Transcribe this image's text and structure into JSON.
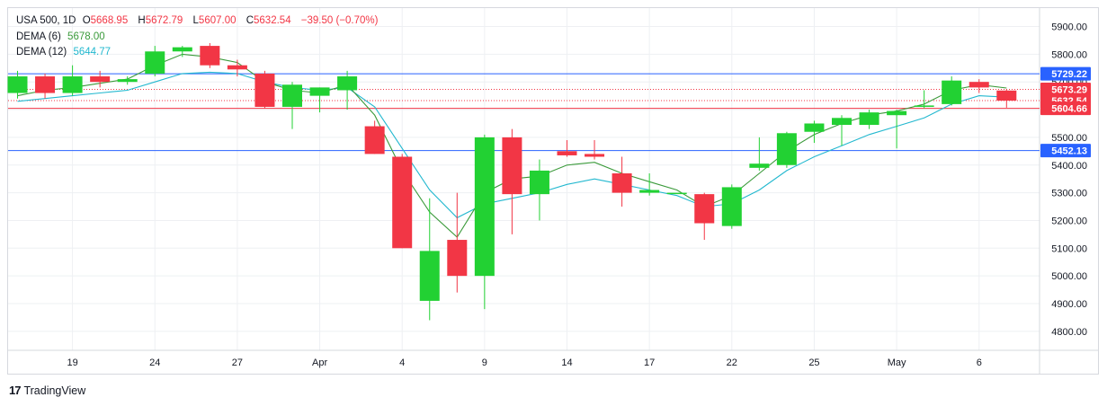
{
  "legend": {
    "symbol": "USA 500, 1D",
    "o_label": "O",
    "o": "5668.95",
    "h_label": "H",
    "h": "5672.79",
    "l_label": "L",
    "l": "5607.00",
    "c_label": "C",
    "c": "5632.54",
    "change": "−39.50 (−0.70%)",
    "dema6_label": "DEMA (6)",
    "dema6": "5678.00",
    "dema12_label": "DEMA (12)",
    "dema12": "5644.77"
  },
  "brand": {
    "logo": "17",
    "name": "TradingView"
  },
  "colors": {
    "up": "#22d133",
    "down": "#f23645",
    "dema6": "#3a9a3a",
    "dema12": "#22b8cf",
    "hline_blue": "#2962ff",
    "hline_red": "#f23645"
  },
  "chart_data": {
    "type": "candlestick",
    "ylim": [
      4750,
      5975
    ],
    "yticks": [
      "4800.00",
      "4900.00",
      "5000.00",
      "5100.00",
      "5200.00",
      "5300.00",
      "5400.00",
      "5500.00",
      "5600.00",
      "5700.00",
      "5800.00",
      "5900.00"
    ],
    "xlabels": [
      {
        "i": 2,
        "label": "19"
      },
      {
        "i": 5,
        "label": "24"
      },
      {
        "i": 8,
        "label": "27"
      },
      {
        "i": 11,
        "label": "Apr"
      },
      {
        "i": 14,
        "label": "4"
      },
      {
        "i": 17,
        "label": "9"
      },
      {
        "i": 20,
        "label": "14"
      },
      {
        "i": 23,
        "label": "17"
      },
      {
        "i": 26,
        "label": "22"
      },
      {
        "i": 29,
        "label": "25"
      },
      {
        "i": 32,
        "label": "May"
      },
      {
        "i": 35,
        "label": "6"
      }
    ],
    "candles": [
      {
        "o": 5660,
        "h": 5740,
        "l": 5640,
        "c": 5720
      },
      {
        "o": 5720,
        "h": 5730,
        "l": 5640,
        "c": 5660
      },
      {
        "o": 5660,
        "h": 5760,
        "l": 5650,
        "c": 5720
      },
      {
        "o": 5720,
        "h": 5740,
        "l": 5680,
        "c": 5700
      },
      {
        "o": 5700,
        "h": 5720,
        "l": 5690,
        "c": 5710
      },
      {
        "o": 5730,
        "h": 5830,
        "l": 5720,
        "c": 5810
      },
      {
        "o": 5810,
        "h": 5830,
        "l": 5790,
        "c": 5825
      },
      {
        "o": 5830,
        "h": 5840,
        "l": 5750,
        "c": 5760
      },
      {
        "o": 5760,
        "h": 5780,
        "l": 5720,
        "c": 5745
      },
      {
        "o": 5730,
        "h": 5740,
        "l": 5605,
        "c": 5610
      },
      {
        "o": 5610,
        "h": 5700,
        "l": 5530,
        "c": 5690
      },
      {
        "o": 5650,
        "h": 5680,
        "l": 5590,
        "c": 5680
      },
      {
        "o": 5670,
        "h": 5740,
        "l": 5600,
        "c": 5720
      },
      {
        "o": 5540,
        "h": 5560,
        "l": 5440,
        "c": 5440
      },
      {
        "o": 5430,
        "h": 5440,
        "l": 5100,
        "c": 5100
      },
      {
        "o": 4910,
        "h": 5280,
        "l": 4840,
        "c": 5090
      },
      {
        "o": 5130,
        "h": 5300,
        "l": 4940,
        "c": 5000
      },
      {
        "o": 5000,
        "h": 5510,
        "l": 4880,
        "c": 5500
      },
      {
        "o": 5500,
        "h": 5530,
        "l": 5150,
        "c": 5295
      },
      {
        "o": 5295,
        "h": 5420,
        "l": 5200,
        "c": 5380
      },
      {
        "o": 5450,
        "h": 5490,
        "l": 5430,
        "c": 5435
      },
      {
        "o": 5440,
        "h": 5490,
        "l": 5420,
        "c": 5430
      },
      {
        "o": 5370,
        "h": 5430,
        "l": 5250,
        "c": 5300
      },
      {
        "o": 5300,
        "h": 5370,
        "l": 5290,
        "c": 5310
      },
      {
        "o": 5300,
        "h": 5300,
        "l": 5300,
        "c": 5300
      },
      {
        "o": 5295,
        "h": 5300,
        "l": 5130,
        "c": 5190
      },
      {
        "o": 5180,
        "h": 5330,
        "l": 5170,
        "c": 5320
      },
      {
        "o": 5390,
        "h": 5500,
        "l": 5380,
        "c": 5405
      },
      {
        "o": 5400,
        "h": 5520,
        "l": 5390,
        "c": 5515
      },
      {
        "o": 5520,
        "h": 5560,
        "l": 5480,
        "c": 5550
      },
      {
        "o": 5545,
        "h": 5580,
        "l": 5470,
        "c": 5570
      },
      {
        "o": 5545,
        "h": 5600,
        "l": 5530,
        "c": 5590
      },
      {
        "o": 5580,
        "h": 5600,
        "l": 5460,
        "c": 5595
      },
      {
        "o": 5610,
        "h": 5670,
        "l": 5605,
        "c": 5615
      },
      {
        "o": 5620,
        "h": 5720,
        "l": 5615,
        "c": 5705
      },
      {
        "o": 5700,
        "h": 5710,
        "l": 5660,
        "c": 5680
      },
      {
        "o": 5668.95,
        "h": 5672.79,
        "l": 5607.0,
        "c": 5632.54
      }
    ],
    "dema6": [
      5650,
      5670,
      5680,
      5695,
      5710,
      5760,
      5800,
      5790,
      5770,
      5700,
      5670,
      5660,
      5690,
      5580,
      5380,
      5230,
      5140,
      5300,
      5350,
      5360,
      5400,
      5410,
      5370,
      5340,
      5310,
      5250,
      5290,
      5370,
      5450,
      5510,
      5550,
      5580,
      5595,
      5620,
      5670,
      5690,
      5678
    ],
    "dema12": [
      5630,
      5640,
      5650,
      5660,
      5670,
      5700,
      5730,
      5735,
      5730,
      5700,
      5680,
      5670,
      5680,
      5610,
      5460,
      5310,
      5210,
      5260,
      5280,
      5300,
      5330,
      5350,
      5330,
      5310,
      5290,
      5250,
      5260,
      5310,
      5380,
      5430,
      5470,
      5510,
      5540,
      5570,
      5620,
      5650,
      5645
    ],
    "hlines": [
      {
        "value": 5729.22,
        "label": "5729.22",
        "color": "#2962ff",
        "dashed": false
      },
      {
        "value": 5673.29,
        "label": "5673.29",
        "color": "#f23645",
        "dashed": true
      },
      {
        "value": 5632.54,
        "label": "5632.54",
        "color": "#f23645",
        "dashed": true
      },
      {
        "value": 5604.66,
        "label": "5604.66",
        "color": "#f23645",
        "dashed": false
      },
      {
        "value": 5452.13,
        "label": "5452.13",
        "color": "#2962ff",
        "dashed": false
      }
    ]
  }
}
